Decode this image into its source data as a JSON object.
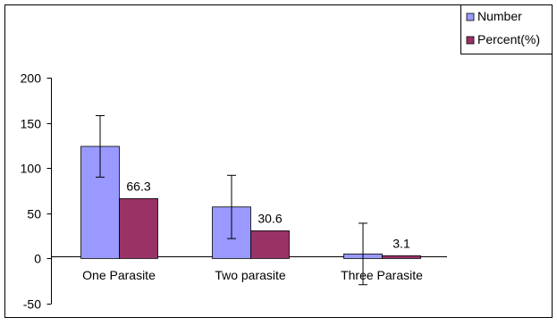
{
  "chart_data": {
    "type": "bar",
    "categories": [
      "One Parasite",
      "Two parasite",
      "Three Parasite"
    ],
    "series": [
      {
        "name": "Number",
        "values": [
          124,
          57,
          5
        ],
        "error": [
          34,
          35,
          34
        ],
        "color": "#9999ff"
      },
      {
        "name": "Percent(%)",
        "values": [
          66.3,
          30.6,
          3.1
        ],
        "color": "#993366",
        "data_labels": [
          "66.3",
          "30.6",
          "3.1"
        ]
      }
    ],
    "ylim": [
      -50,
      200
    ],
    "yticks": [
      -50,
      0,
      50,
      100,
      150,
      200
    ],
    "ytick_labels": [
      "-50",
      "0",
      "50",
      "100",
      "150",
      "200"
    ],
    "legend_position": "top-right",
    "grid": false
  }
}
